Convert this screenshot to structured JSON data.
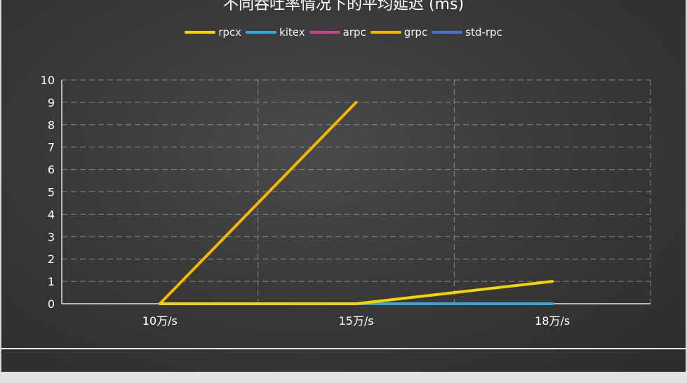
{
  "chart_data": {
    "type": "line",
    "title": "不同吞吐率情况下的平均延迟 (ms)",
    "categories": [
      "10万/s",
      "15万/s",
      "18万/s"
    ],
    "ylim": [
      0,
      10
    ],
    "yticks": [
      "0",
      "1",
      "2",
      "3",
      "4",
      "5",
      "6",
      "7",
      "8",
      "9",
      "10"
    ],
    "grid": true,
    "legend_position": "top",
    "series": [
      {
        "name": "rpcx",
        "values": [
          0,
          0,
          1
        ],
        "color": "#f5d400"
      },
      {
        "name": "kitex",
        "values": [
          0,
          0,
          0
        ],
        "color": "#2fa8e0"
      },
      {
        "name": "arpc",
        "values": [
          0,
          0,
          0
        ],
        "color": "#c8408e"
      },
      {
        "name": "grpc",
        "values": [
          0,
          9,
          null
        ],
        "color": "#f5b700"
      },
      {
        "name": "std-rpc",
        "values": [
          0,
          0,
          0
        ],
        "color": "#4b6ed6"
      }
    ]
  }
}
